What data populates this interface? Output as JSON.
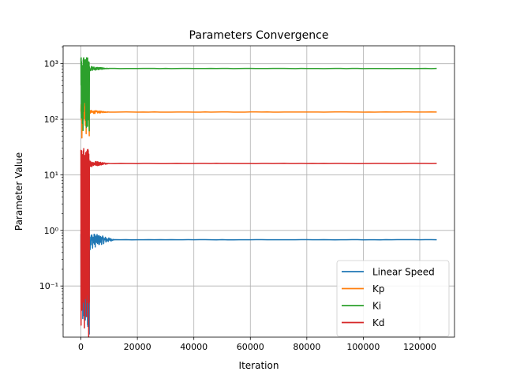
{
  "chart_data": {
    "type": "line",
    "title": "Parameters Convergence",
    "xlabel": "Iteration",
    "ylabel": "Parameter Value",
    "yscale": "log",
    "xlim": [
      -6300,
      132300
    ],
    "ylim": [
      0.012,
      2100
    ],
    "grid": true,
    "legend_position": "lower right",
    "x_ticks": [
      0,
      20000,
      40000,
      60000,
      80000,
      100000,
      120000
    ],
    "y_ticks": [
      {
        "value": 0.1,
        "label": "10⁻¹"
      },
      {
        "value": 1,
        "label": "10⁰"
      },
      {
        "value": 10,
        "label": "10¹"
      },
      {
        "value": 100,
        "label": "10²"
      },
      {
        "value": 1000,
        "label": "10³"
      }
    ],
    "series": [
      {
        "name": "Linear Speed",
        "color": "#1f77b4",
        "final": 0.68,
        "start_low": 0.012,
        "transient_high": 1.0,
        "noise_early": 0.35,
        "settle_iteration": 12000,
        "x_max": 126000
      },
      {
        "name": "Kp",
        "color": "#ff7f0e",
        "final": 135,
        "start_low": 40,
        "transient_high": 150,
        "noise_early": 0.08,
        "settle_iteration": 10000,
        "x_max": 126000
      },
      {
        "name": "Ki",
        "color": "#2ca02c",
        "final": 820,
        "start_low": 60,
        "transient_high": 1300,
        "noise_early": 0.1,
        "settle_iteration": 10000,
        "x_max": 126000
      },
      {
        "name": "Kd",
        "color": "#d62728",
        "final": 16,
        "start_low": 0.012,
        "transient_high": 30,
        "noise_early": 0.15,
        "settle_iteration": 10000,
        "x_max": 126000
      }
    ]
  }
}
